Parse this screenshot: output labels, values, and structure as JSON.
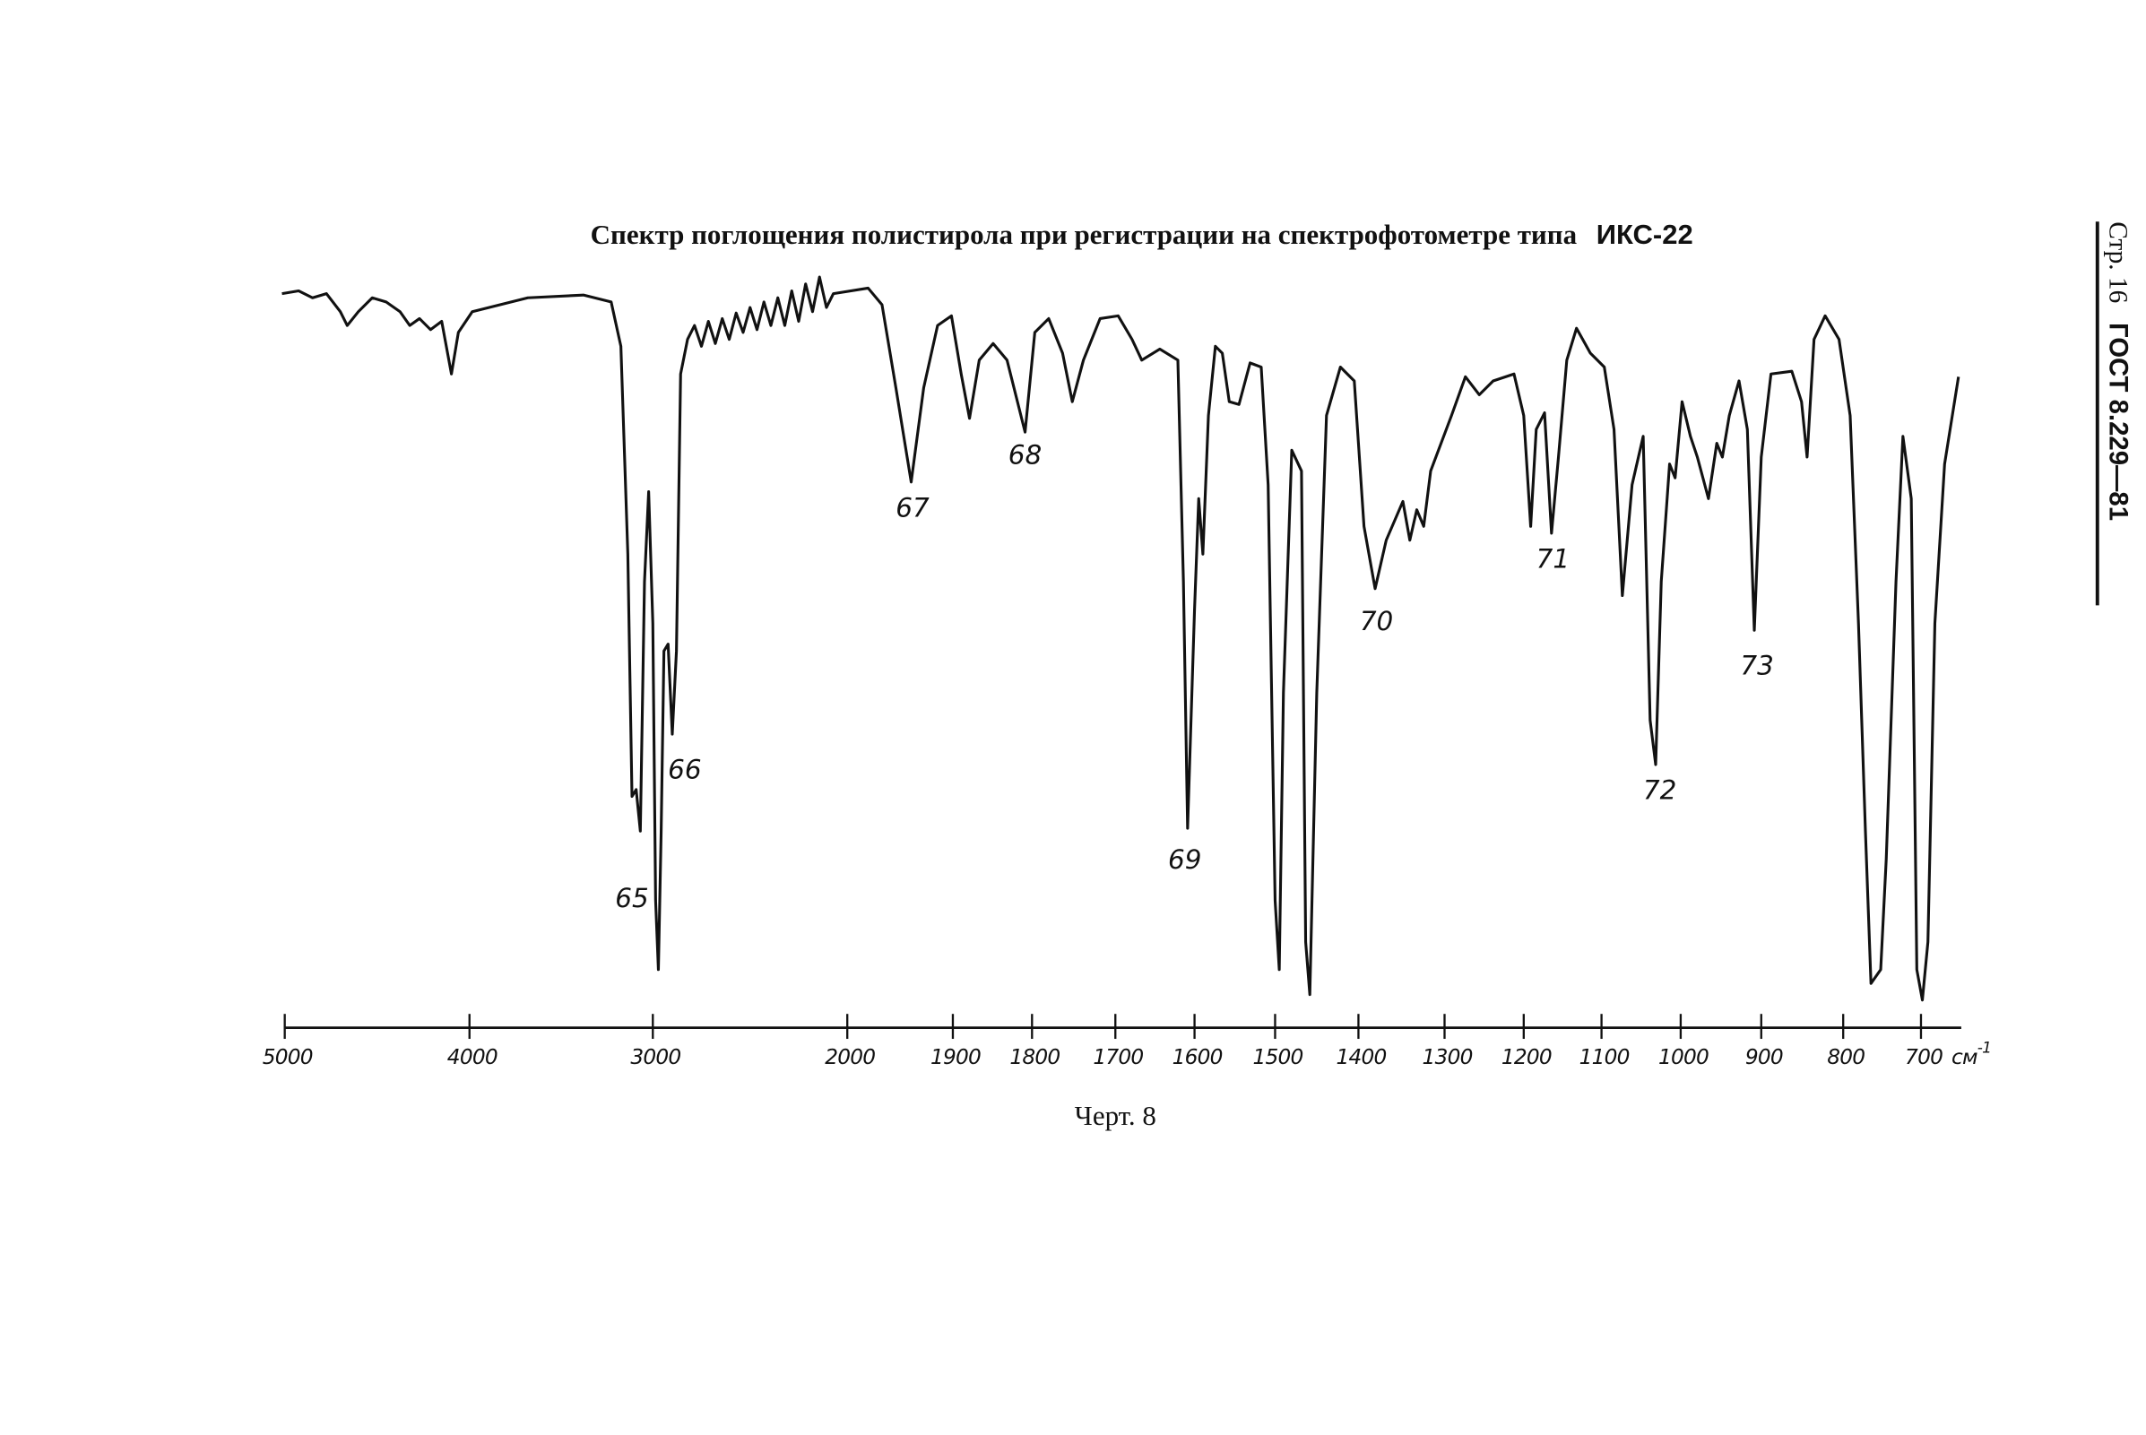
{
  "header": {
    "page": "Стр. 16",
    "standard": "ГОСТ 8.229—81"
  },
  "title": {
    "text": "Спектр поглощения полистирола при регистрации на спектрофотометре типа",
    "device": "ИКС-22"
  },
  "axis": {
    "ticks": [
      "5000",
      "4000",
      "3000",
      "2000",
      "1900",
      "1800",
      "1700",
      "1600",
      "1500",
      "1400",
      "1300",
      "1200",
      "1100",
      "1000",
      "900",
      "800",
      "700"
    ],
    "unit": "см",
    "unit_exponent": "-1"
  },
  "peaks": [
    "65",
    "66",
    "67",
    "68",
    "69",
    "70",
    "71",
    "72",
    "73"
  ],
  "caption": "Черт. 8"
}
